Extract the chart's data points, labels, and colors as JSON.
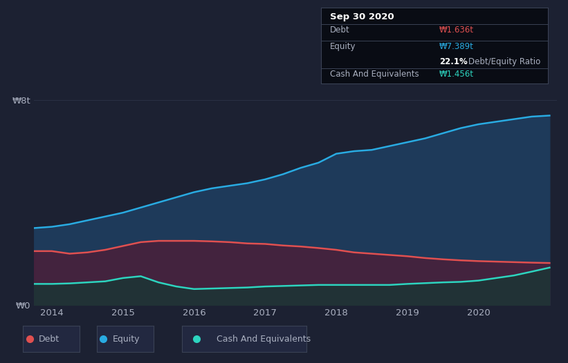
{
  "background_color": "#1c2132",
  "plot_bg_color": "#1c2132",
  "tooltip": {
    "date": "Sep 30 2020",
    "debt_label": "Debt",
    "debt_value": "₩1.636t",
    "equity_label": "Equity",
    "equity_value": "₩7.389t",
    "ratio_value": "22.1%",
    "ratio_label": "Debt/Equity Ratio",
    "cash_label": "Cash And Equivalents",
    "cash_value": "₩1.456t"
  },
  "years": [
    2013.75,
    2014.0,
    2014.25,
    2014.5,
    2014.75,
    2015.0,
    2015.25,
    2015.5,
    2015.75,
    2016.0,
    2016.25,
    2016.5,
    2016.75,
    2017.0,
    2017.25,
    2017.5,
    2017.75,
    2018.0,
    2018.25,
    2018.5,
    2018.75,
    2019.0,
    2019.25,
    2019.5,
    2019.75,
    2020.0,
    2020.25,
    2020.5,
    2020.75,
    2021.0
  ],
  "equity": [
    3.0,
    3.05,
    3.15,
    3.3,
    3.45,
    3.6,
    3.8,
    4.0,
    4.2,
    4.4,
    4.55,
    4.65,
    4.75,
    4.9,
    5.1,
    5.35,
    5.55,
    5.9,
    6.0,
    6.05,
    6.2,
    6.35,
    6.5,
    6.7,
    6.9,
    7.05,
    7.15,
    7.25,
    7.35,
    7.39
  ],
  "debt": [
    2.1,
    2.1,
    2.0,
    2.05,
    2.15,
    2.3,
    2.45,
    2.5,
    2.5,
    2.5,
    2.48,
    2.45,
    2.4,
    2.38,
    2.32,
    2.28,
    2.22,
    2.15,
    2.05,
    2.0,
    1.95,
    1.9,
    1.83,
    1.78,
    1.74,
    1.71,
    1.69,
    1.67,
    1.65,
    1.636
  ],
  "cash": [
    0.82,
    0.82,
    0.84,
    0.88,
    0.92,
    1.05,
    1.12,
    0.88,
    0.72,
    0.62,
    0.64,
    0.66,
    0.68,
    0.72,
    0.74,
    0.76,
    0.78,
    0.78,
    0.78,
    0.78,
    0.78,
    0.82,
    0.85,
    0.88,
    0.9,
    0.95,
    1.05,
    1.15,
    1.3,
    1.456
  ],
  "equity_color": "#29abe2",
  "debt_color": "#e05050",
  "cash_color": "#2dd4bf",
  "equity_fill": "#1e3a5a",
  "debt_fill": "#4a1f3a",
  "cash_fill": "#1c3535",
  "grid_color": "#2c3347",
  "text_color": "#aab0c0",
  "legend_bg": "#222840",
  "legend_border": "#3a4255",
  "tooltip_bg": "#090c14",
  "tooltip_border": "#3a4255",
  "xlim": [
    2013.75,
    2021.1
  ],
  "ylim": [
    0,
    8.5
  ],
  "ytick_labels": [
    "₩0",
    "₩8t"
  ],
  "ytick_vals": [
    0,
    8
  ],
  "xtick_vals": [
    2014,
    2015,
    2016,
    2017,
    2018,
    2019,
    2020
  ],
  "xtick_labels": [
    "2014",
    "2015",
    "2016",
    "2017",
    "2018",
    "2019",
    "2020"
  ]
}
